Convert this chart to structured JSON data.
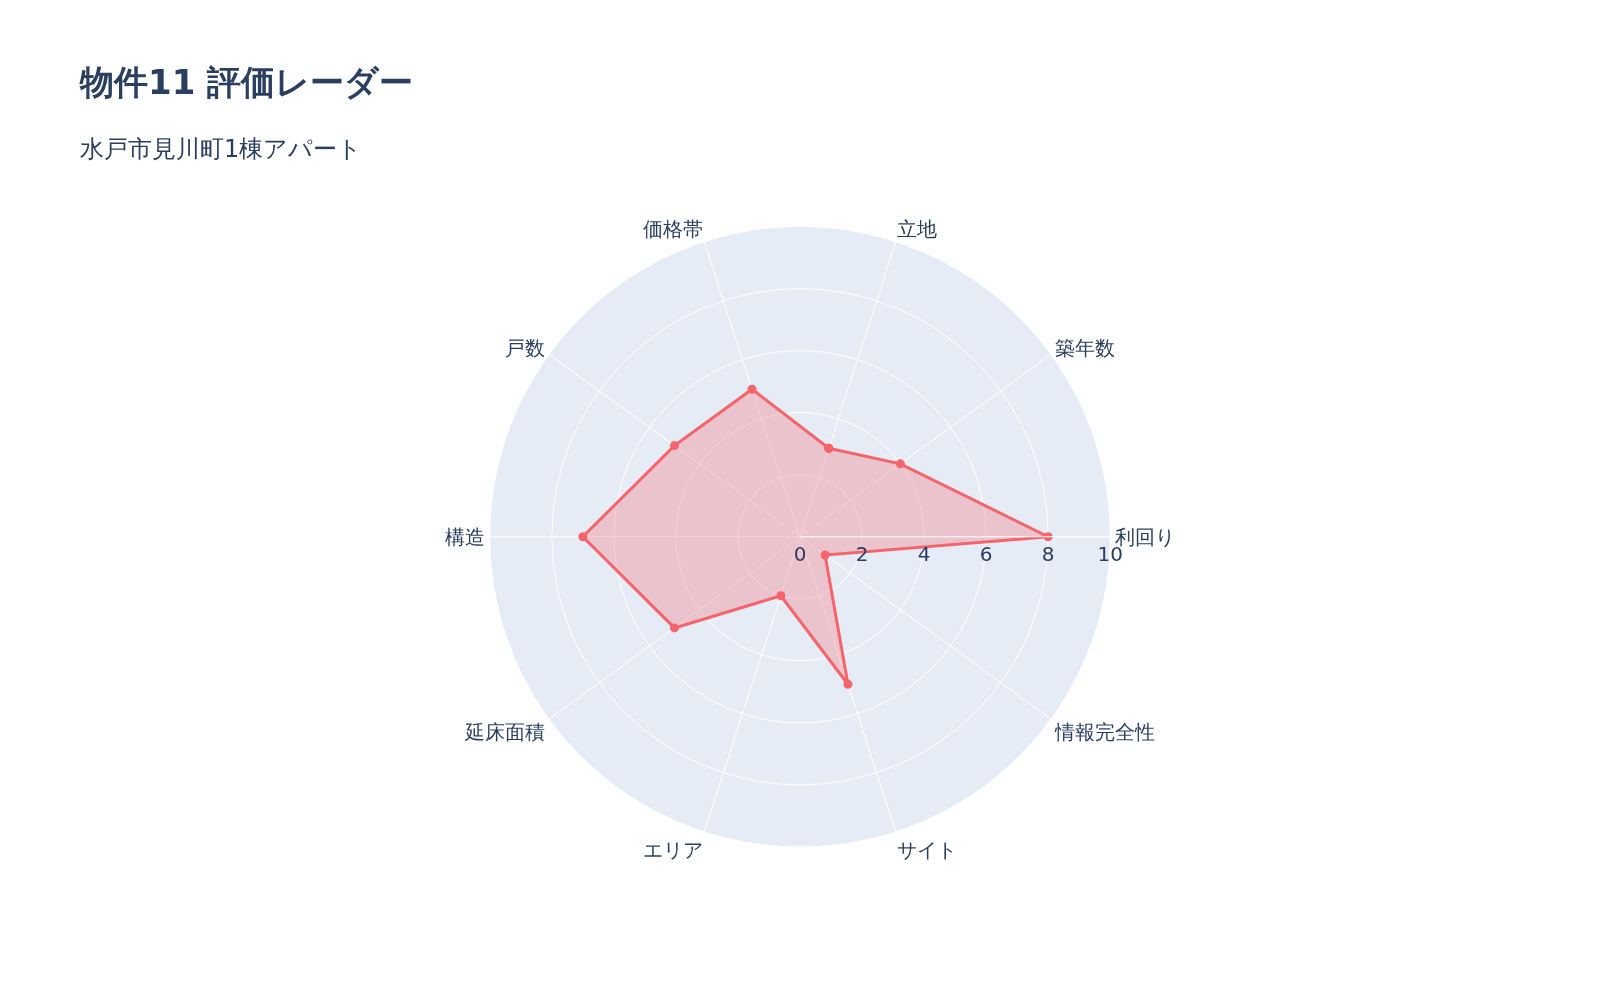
{
  "chart_data": {
    "type": "radar",
    "title": "物件11 評価レーダー",
    "subtitle": "水戸市見川町1棟アパート",
    "categories": [
      "立地",
      "築年数",
      "利回り",
      "情報完全性",
      "サイト",
      "エリア",
      "延床面積",
      "構造",
      "戸数",
      "価格帯"
    ],
    "series": [
      {
        "color": "#f4646a",
        "values": [
          3,
          4,
          8,
          1,
          5,
          2,
          5,
          7,
          5,
          5
        ]
      }
    ],
    "ylim": [
      0,
      10
    ],
    "yticks": [
      0,
      2,
      4,
      6,
      8,
      10
    ],
    "grid": true,
    "marker": "circle",
    "line_style": "solid"
  }
}
